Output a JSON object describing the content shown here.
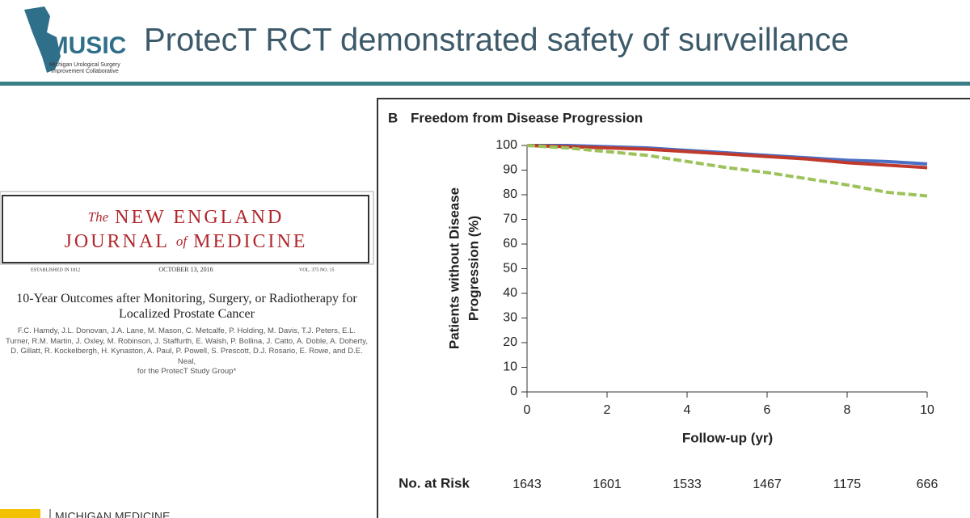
{
  "header": {
    "title": "ProtecT RCT demonstrated safety of surveillance",
    "logo": "MUSIC",
    "logo_subtitle": [
      "Michigan Urological Surgery",
      "Improvement Collaborative"
    ]
  },
  "journal": {
    "the": "The",
    "line1": "NEW ENGLAND",
    "journal": "JOURNAL",
    "of": "of",
    "medicine": "MEDICINE",
    "established": "ESTABLISHED IN 1812",
    "date": "OCTOBER 13, 2016",
    "volume": "VOL. 375 NO. 15"
  },
  "article": {
    "title": "10-Year Outcomes after Monitoring, Surgery, or Radiotherapy for Localized Prostate Cancer",
    "authors": "F.C. Hamdy, J.L. Donovan, J.A. Lane, M. Mason, C. Metcalfe, P. Holding, M. Davis, T.J. Peters, E.L. Turner, R.M. Martin, J. Oxley, M. Robinson, J. Staffurth, E. Walsh, P. Bollina, J. Catto, A. Doble, A. Doherty, D. Gillatt, R. Kockelbergh, H. Kynaston, A. Paul, P. Powell, S. Prescott, D.J. Rosario, E. Rowe, and D.E. Neal,",
    "group": "for the ProtecT Study Group*"
  },
  "footer": {
    "text": "MICHIGAN MEDICINE"
  },
  "chart_data": {
    "type": "line",
    "panel": "B",
    "title": "Freedom from Disease Progression",
    "xlabel": "Follow-up (yr)",
    "ylabel": [
      "Patients without Disease",
      "Progression (%)"
    ],
    "x": [
      0,
      1,
      2,
      3,
      4,
      5,
      6,
      7,
      8,
      9,
      10
    ],
    "series": [
      {
        "color": "#4a6fc4",
        "style": "solid",
        "values": [
          100,
          100,
          99.5,
          99,
          98,
          97,
          96,
          95,
          94,
          93.5,
          92.5
        ]
      },
      {
        "color": "#c0392b",
        "style": "solid",
        "values": [
          100,
          99.5,
          99,
          98.5,
          97.5,
          96.5,
          95.5,
          94.5,
          93,
          92,
          91
        ]
      },
      {
        "color": "#9cc25a",
        "style": "dashed",
        "values": [
          100,
          99,
          97.5,
          96,
          93.5,
          91,
          89,
          86.5,
          84,
          81,
          79.5
        ]
      }
    ],
    "xlim": [
      0,
      10
    ],
    "xticks": [
      0,
      2,
      4,
      6,
      8,
      10
    ],
    "ylim": [
      0,
      100
    ],
    "yticks": [
      0,
      10,
      20,
      30,
      40,
      50,
      60,
      70,
      80,
      90,
      100
    ],
    "at_risk": {
      "label": "No. at Risk",
      "values": [
        1643,
        1601,
        1533,
        1467,
        1175,
        666
      ]
    }
  }
}
